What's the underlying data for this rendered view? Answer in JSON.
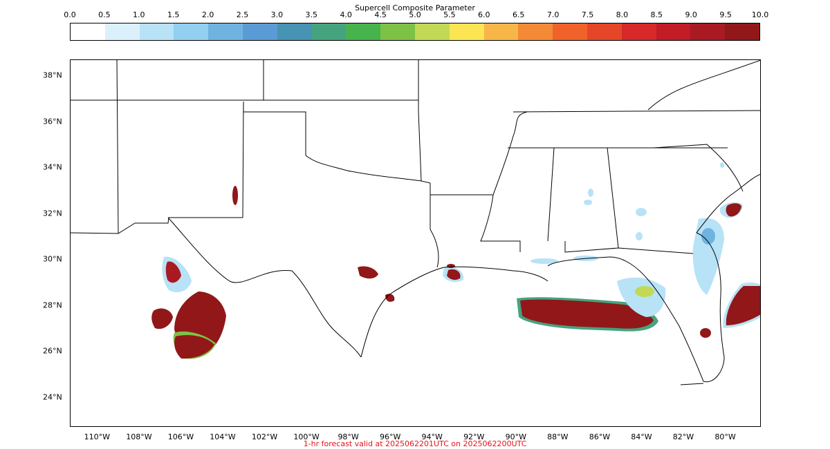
{
  "colorbar": {
    "title": "Supercell Composite Parameter",
    "ticks": [
      "0.0",
      "0.5",
      "1.0",
      "1.5",
      "2.0",
      "2.5",
      "3.0",
      "3.5",
      "4.0",
      "4.5",
      "5.0",
      "5.5",
      "6.0",
      "6.5",
      "7.0",
      "7.5",
      "8.0",
      "8.5",
      "9.0",
      "9.5",
      "10.0"
    ],
    "colors": [
      "#ffffff",
      "#dcf0fb",
      "#b8e2f6",
      "#92cff0",
      "#6fb3e0",
      "#5b9bd5",
      "#4793b3",
      "#45a47e",
      "#46b34d",
      "#7dc247",
      "#c2d955",
      "#fbe552",
      "#f8b648",
      "#f48a35",
      "#f0622a",
      "#e44627",
      "#d7282a",
      "#c21d26",
      "#a91a22",
      "#921719"
    ],
    "vmin": 0,
    "vmax": 10
  },
  "map": {
    "lat_labels": [
      "38°N",
      "36°N",
      "34°N",
      "32°N",
      "30°N",
      "28°N",
      "26°N",
      "24°N"
    ],
    "lat_values": [
      38,
      36,
      34,
      32,
      30,
      28,
      26,
      24
    ],
    "lon_labels": [
      "110°W",
      "108°W",
      "106°W",
      "104°W",
      "102°W",
      "100°W",
      "98°W",
      "96°W",
      "94°W",
      "92°W",
      "90°W",
      "88°W",
      "86°W",
      "84°W",
      "82°W",
      "80°W"
    ],
    "lon_values": [
      -110,
      -108,
      -106,
      -104,
      -102,
      -100,
      -98,
      -96,
      -94,
      -92,
      -90,
      -88,
      -86,
      -84,
      -82,
      -80
    ]
  },
  "footer": {
    "text": "1-hr forecast valid at 2025062201UTC on 2025062200UTC",
    "color": "#e8101a"
  }
}
